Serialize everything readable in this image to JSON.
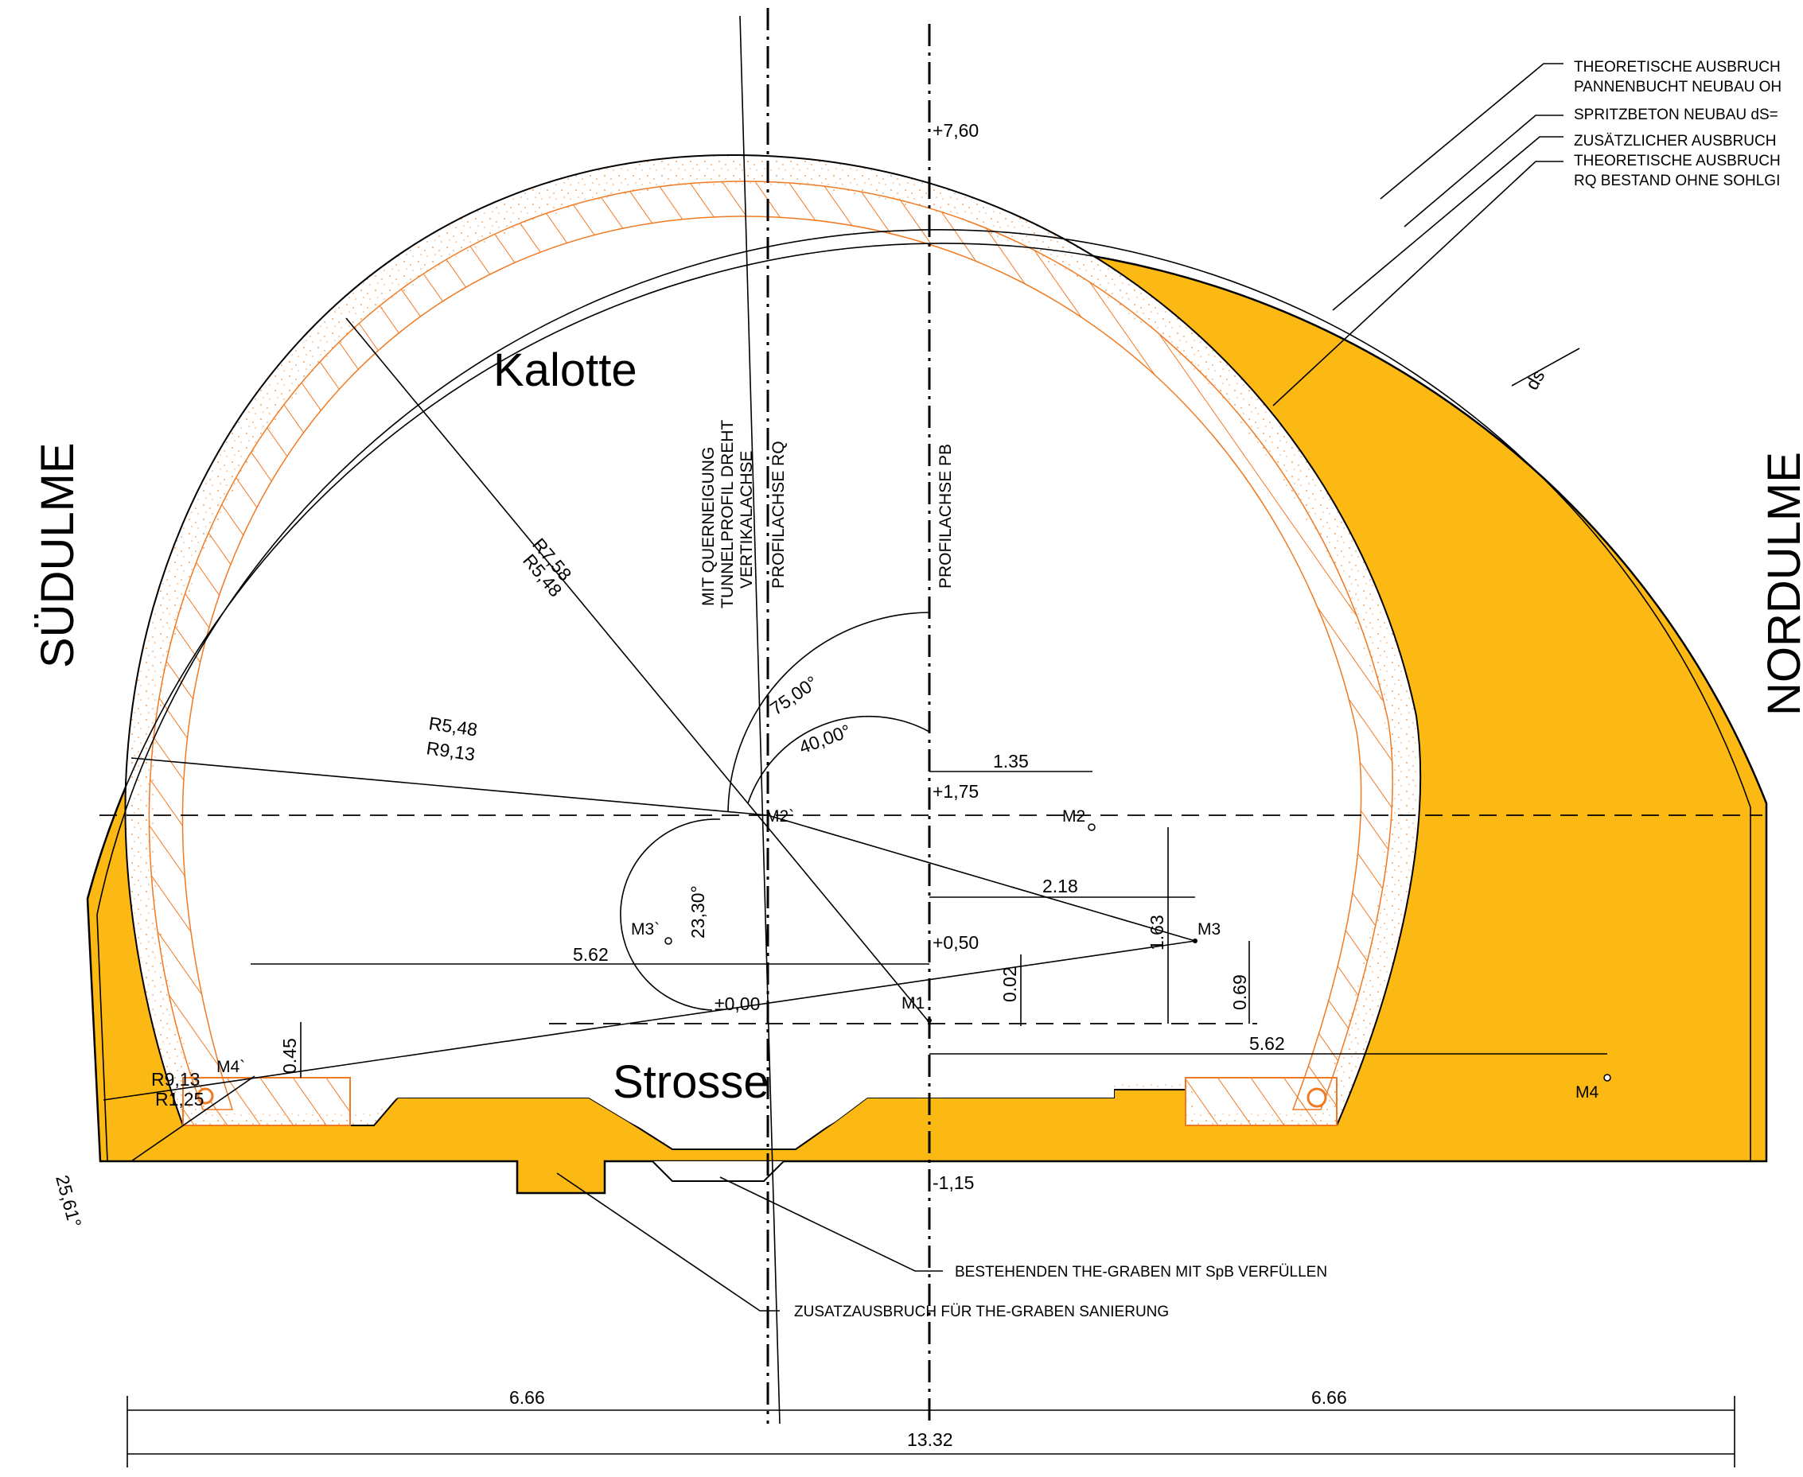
{
  "sections": {
    "upper": "Kalotte",
    "lower": "Strosse",
    "wall_left": "SÜDULME",
    "wall_right": "NORDULME"
  },
  "axes": {
    "profile_pb": "PROFILACHSE PB",
    "profile_rq": "PROFILACHSE RQ",
    "vertical": [
      "VERTIKALACHSE",
      "TUNNELPROFIL DREHT",
      "MIT QUERNEIGUNG"
    ]
  },
  "legend": [
    "THEORETISCHE AUSBRUCH",
    "PANNENBUCHT NEUBAU OH",
    "SPRITZBETON NEUBAU dS=",
    "ZUSÄTZLICHER AUSBRUCH",
    "THEORETISCHE AUSBRUCH",
    "RQ BESTAND OHNE SOHLGI"
  ],
  "callouts": {
    "graben": "BESTEHENDEN THE-GRABEN MIT SpB VERFÜLLEN",
    "zusatz": "ZUSATZAUSBRUCH FÜR THE-GRABEN SANIERUNG"
  },
  "elevations": {
    "top": "+7,60",
    "spring": "+1,75",
    "mid": "+0,50",
    "zero": "±0,00",
    "bottom": "-1,15"
  },
  "dimensions": {
    "d135": "1.35",
    "d218": "2.18",
    "d562a": "5.62",
    "d562b": "5.62",
    "d163": "1.63",
    "d069": "0.69",
    "d002": "0.02",
    "d045": "0.45",
    "left_half": "6.66",
    "right_half": "6.66",
    "total": "13.32",
    "ds": "ds"
  },
  "radii": {
    "r758": "R7,58",
    "r548a": "R5,48",
    "r548b": "R5,48",
    "r913a": "R9,13",
    "r913b": "R9,13",
    "r125": "R1,25"
  },
  "angles": {
    "a75": "75,00°",
    "a40": "40,00°",
    "a2330": "23,30°",
    "a2561": "25,61°"
  },
  "points": {
    "m1": "M1",
    "m2": "M2",
    "m2p": "M2`",
    "m3": "M3",
    "m3p": "M3`",
    "m4": "M4",
    "m4p": "M4`"
  },
  "colors": {
    "fill": "#fdb913",
    "edge": "#000000",
    "liner": "#f07a22"
  }
}
